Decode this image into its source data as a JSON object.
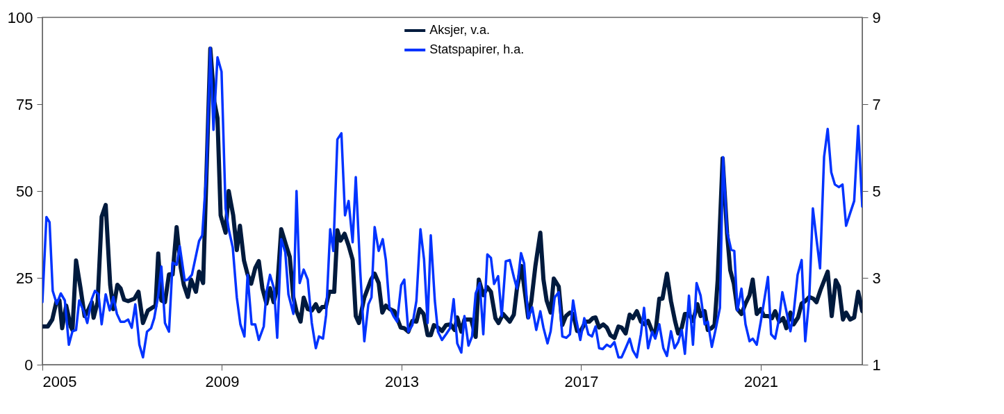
{
  "chart_data": {
    "type": "line",
    "xlim": [
      2005,
      2023.26
    ],
    "xticks": [
      2005,
      2009,
      2013,
      2017,
      2021
    ],
    "ylim": [
      0,
      100
    ],
    "yticks": [
      0,
      25,
      50,
      75,
      100
    ],
    "y2lim": [
      1,
      9
    ],
    "y2ticks": [
      1,
      3,
      5,
      7,
      9
    ],
    "grid": false,
    "legend": "top",
    "series": [
      {
        "name": "Aksjer, v.a.",
        "color": "#001a3d",
        "x": [
          2005.0,
          2005.12,
          2005.22,
          2005.31,
          2005.38,
          2005.44,
          2005.53,
          2005.63,
          2005.67,
          2005.75,
          2005.85,
          2005.94,
          2006.03,
          2006.1,
          2006.14,
          2006.23,
          2006.32,
          2006.41,
          2006.51,
          2006.58,
          2006.67,
          2006.74,
          2006.82,
          2006.91,
          2007.05,
          2007.14,
          2007.24,
          2007.35,
          2007.52,
          2007.58,
          2007.65,
          2007.73,
          2007.82,
          2007.9,
          2007.99,
          2008.08,
          2008.15,
          2008.24,
          2008.31,
          2008.42,
          2008.49,
          2008.58,
          2008.74,
          2008.83,
          2008.9,
          2008.97,
          2009.08,
          2009.15,
          2009.25,
          2009.33,
          2009.4,
          2009.49,
          2009.57,
          2009.65,
          2009.74,
          2009.82,
          2009.9,
          2009.99,
          2010.07,
          2010.15,
          2010.23,
          2010.32,
          2010.43,
          2010.51,
          2010.59,
          2010.66,
          2010.75,
          2010.82,
          2010.91,
          2011.0,
          2011.09,
          2011.16,
          2011.23,
          2011.31,
          2011.39,
          2011.5,
          2011.57,
          2011.64,
          2011.73,
          2011.82,
          2011.91,
          2011.98,
          2012.05,
          2012.17,
          2012.32,
          2012.4,
          2012.49,
          2012.57,
          2012.65,
          2012.74,
          2012.84,
          2012.98,
          2013.06,
          2013.15,
          2013.24,
          2013.33,
          2013.4,
          2013.49,
          2013.58,
          2013.65,
          2013.72,
          2013.81,
          2013.9,
          2013.99,
          2014.09,
          2014.18,
          2014.24,
          2014.33,
          2014.4,
          2014.55,
          2014.65,
          2014.72,
          2014.82,
          2014.91,
          2014.99,
          2015.09,
          2015.16,
          2015.26,
          2015.41,
          2015.5,
          2015.57,
          2015.67,
          2015.82,
          2015.89,
          2015.98,
          2016.09,
          2016.16,
          2016.23,
          2016.32,
          2016.39,
          2016.5,
          2016.58,
          2016.66,
          2016.75,
          2016.82,
          2016.91,
          2016.99,
          2017.1,
          2017.18,
          2017.26,
          2017.32,
          2017.4,
          2017.49,
          2017.57,
          2017.65,
          2017.74,
          2017.83,
          2017.9,
          2017.99,
          2018.08,
          2018.15,
          2018.24,
          2018.33,
          2018.42,
          2018.49,
          2018.58,
          2018.65,
          2018.74,
          2018.81,
          2018.91,
          2019.0,
          2019.09,
          2019.16,
          2019.24,
          2019.31,
          2019.4,
          2019.49,
          2019.59,
          2019.66,
          2019.75,
          2019.82,
          2019.9,
          2019.97,
          2020.04,
          2020.15,
          2020.25,
          2020.32,
          2020.4,
          2020.48,
          2020.57,
          2020.66,
          2020.75,
          2020.82,
          2020.91,
          2021.0,
          2021.07,
          2021.17,
          2021.25,
          2021.32,
          2021.41,
          2021.5,
          2021.57,
          2021.66,
          2021.73,
          2021.83,
          2021.91,
          2021.99,
          2022.08,
          2022.17,
          2022.24,
          2022.33,
          2022.49,
          2022.58,
          2022.67,
          2022.74,
          2022.83,
          2022.9,
          2022.99,
          2023.08,
          2023.17,
          2023.26
        ],
        "values": [
          11,
          11,
          13,
          18,
          18.5,
          10.5,
          17,
          11,
          10,
          30,
          22,
          14,
          16,
          18,
          13.5,
          18,
          42.6,
          46,
          23,
          16,
          23,
          22,
          18.7,
          18.3,
          19,
          21,
          12,
          15.6,
          17,
          32,
          18.5,
          18,
          26,
          26,
          39.6,
          28,
          23,
          19.5,
          24.5,
          21,
          26.8,
          23.5,
          91,
          75.7,
          71,
          43,
          38,
          50,
          43,
          33,
          40,
          30,
          26,
          23.3,
          27.8,
          29.8,
          22,
          17.6,
          22,
          18,
          22,
          39,
          34.3,
          31,
          19.3,
          15.4,
          12.4,
          19.3,
          16,
          15.6,
          17.4,
          15.4,
          16.6,
          16.6,
          21,
          21,
          38.7,
          35.7,
          37.7,
          34.3,
          30.2,
          14,
          12,
          19.3,
          24.5,
          26.2,
          23.5,
          15,
          17,
          16,
          15.4,
          10.7,
          10.5,
          9.5,
          12.6,
          12.4,
          16,
          14.6,
          8.5,
          8.5,
          11.4,
          10.7,
          9.7,
          11.4,
          11.6,
          10,
          13.6,
          9.5,
          13,
          13,
          8,
          24.5,
          20,
          22.3,
          21,
          13.4,
          12,
          14.6,
          12.4,
          14.4,
          22,
          28.4,
          13.6,
          18.3,
          28.4,
          38,
          24.5,
          18.5,
          15,
          24.8,
          22.5,
          11.4,
          14,
          15,
          14.6,
          9.7,
          9.7,
          12.4,
          12.4,
          13.4,
          13.6,
          10.7,
          11.6,
          10.7,
          8.5,
          7.7,
          11,
          10.7,
          9,
          14.4,
          13.4,
          15.4,
          12.4,
          11.6,
          12.6,
          9.7,
          8.7,
          19,
          19,
          26.2,
          18.3,
          12.6,
          9,
          10.7,
          14.6,
          14.6,
          12.6,
          17.4,
          14,
          15.4,
          10,
          10.5,
          11.4,
          24.3,
          59.4,
          37.7,
          27.2,
          23.3,
          16,
          14.6,
          17.6,
          20,
          24.5,
          14.6,
          16,
          14,
          14,
          13.4,
          15.4,
          12.4,
          13.4,
          10.5,
          15,
          11.6,
          13.6,
          17.6,
          18.3,
          19.5,
          19,
          18,
          21.5,
          26.8,
          14,
          24.3,
          22.5,
          13,
          15,
          13,
          13.6,
          21,
          15.4
        ]
      },
      {
        "name": "Statspapirer, h.a.",
        "color": "#0033ff",
        "axis": "y2",
        "x": [
          2005.0,
          2005.09,
          2005.16,
          2005.23,
          2005.32,
          2005.41,
          2005.5,
          2005.59,
          2005.67,
          2005.75,
          2005.82,
          2005.92,
          2006.0,
          2006.1,
          2006.17,
          2006.25,
          2006.32,
          2006.41,
          2006.5,
          2006.58,
          2006.66,
          2006.74,
          2006.83,
          2006.91,
          2006.99,
          2007.07,
          2007.16,
          2007.24,
          2007.33,
          2007.42,
          2007.49,
          2007.58,
          2007.65,
          2007.73,
          2007.82,
          2007.9,
          2007.99,
          2008.06,
          2008.17,
          2008.24,
          2008.33,
          2008.49,
          2008.56,
          2008.65,
          2008.74,
          2008.81,
          2008.9,
          2008.99,
          2009.08,
          2009.15,
          2009.24,
          2009.33,
          2009.41,
          2009.5,
          2009.57,
          2009.66,
          2009.74,
          2009.82,
          2009.93,
          2009.99,
          2010.07,
          2010.16,
          2010.23,
          2010.32,
          2010.41,
          2010.48,
          2010.59,
          2010.66,
          2010.73,
          2010.82,
          2010.91,
          2011.0,
          2011.09,
          2011.16,
          2011.25,
          2011.32,
          2011.41,
          2011.48,
          2011.57,
          2011.66,
          2011.74,
          2011.82,
          2011.91,
          2011.98,
          2012.08,
          2012.17,
          2012.26,
          2012.33,
          2012.4,
          2012.49,
          2012.58,
          2012.65,
          2012.73,
          2012.82,
          2012.9,
          2012.99,
          2013.06,
          2013.15,
          2013.24,
          2013.33,
          2013.42,
          2013.5,
          2013.58,
          2013.65,
          2013.74,
          2013.81,
          2013.9,
          2013.99,
          2014.08,
          2014.16,
          2014.24,
          2014.33,
          2014.4,
          2014.49,
          2014.57,
          2014.65,
          2014.74,
          2014.82,
          2014.91,
          2014.99,
          2015.06,
          2015.15,
          2015.23,
          2015.32,
          2015.41,
          2015.5,
          2015.57,
          2015.66,
          2015.73,
          2015.82,
          2015.91,
          2016.0,
          2016.09,
          2016.16,
          2016.25,
          2016.32,
          2016.41,
          2016.5,
          2016.58,
          2016.67,
          2016.75,
          2016.82,
          2016.89,
          2016.98,
          2017.07,
          2017.16,
          2017.24,
          2017.32,
          2017.4,
          2017.48,
          2017.57,
          2017.65,
          2017.74,
          2017.83,
          2017.9,
          2017.99,
          2018.08,
          2018.15,
          2018.24,
          2018.33,
          2018.4,
          2018.49,
          2018.58,
          2018.65,
          2018.74,
          2018.83,
          2018.91,
          2019.0,
          2019.08,
          2019.16,
          2019.24,
          2019.31,
          2019.4,
          2019.49,
          2019.57,
          2019.66,
          2019.75,
          2019.82,
          2019.91,
          2020.0,
          2020.09,
          2020.16,
          2020.25,
          2020.34,
          2020.41,
          2020.48,
          2020.57,
          2020.66,
          2020.75,
          2020.82,
          2020.91,
          2021.0,
          2021.07,
          2021.16,
          2021.23,
          2021.32,
          2021.41,
          2021.48,
          2021.57,
          2021.66,
          2021.73,
          2021.82,
          2021.91,
          2021.99,
          2022.08,
          2022.16,
          2022.24,
          2022.32,
          2022.41,
          2022.49,
          2022.57,
          2022.65,
          2022.74,
          2022.82,
          2022.9,
          2022.99,
          2023.08,
          2023.17,
          2023.26
        ],
        "values": [
          2.44,
          4.4,
          4.28,
          2.7,
          2.4,
          2.64,
          2.48,
          1.46,
          1.77,
          1.8,
          2.48,
          2.23,
          1.96,
          2.51,
          2.7,
          2.62,
          1.93,
          2.62,
          2.25,
          2.56,
          2.17,
          1.99,
          1.99,
          2.04,
          1.85,
          2.39,
          1.46,
          1.17,
          1.76,
          1.84,
          2.07,
          2.59,
          3.26,
          1.96,
          1.76,
          3.35,
          3.3,
          3.73,
          2.94,
          2.96,
          3.07,
          3.85,
          3.98,
          5.38,
          8.3,
          6.41,
          8.08,
          7.75,
          4.6,
          4.12,
          3.7,
          2.55,
          1.93,
          1.65,
          3.07,
          1.93,
          1.93,
          1.57,
          1.88,
          2.67,
          3.07,
          2.75,
          1.62,
          3.89,
          3.59,
          2.62,
          2.17,
          5.0,
          2.88,
          3.19,
          2.96,
          1.96,
          1.38,
          1.65,
          1.6,
          2.15,
          4.12,
          3.62,
          6.19,
          6.33,
          4.44,
          4.77,
          3.82,
          5.32,
          3.14,
          1.54,
          2.39,
          2.55,
          4.17,
          3.62,
          3.89,
          3.41,
          2.32,
          2.12,
          1.99,
          2.83,
          2.96,
          1.76,
          1.91,
          2.47,
          4.12,
          3.43,
          1.96,
          3.98,
          2.48,
          1.76,
          1.57,
          1.7,
          1.84,
          2.51,
          1.49,
          1.28,
          2.12,
          1.44,
          1.65,
          2.64,
          2.88,
          1.7,
          3.54,
          3.46,
          2.86,
          3.04,
          2.12,
          3.38,
          3.41,
          3.02,
          2.75,
          3.57,
          3.33,
          2.07,
          2.32,
          1.8,
          2.23,
          1.85,
          1.49,
          1.77,
          2.55,
          2.67,
          1.65,
          1.62,
          1.7,
          2.48,
          2.04,
          1.57,
          2.07,
          1.7,
          1.65,
          1.88,
          1.38,
          1.36,
          1.46,
          1.41,
          1.52,
          1.17,
          1.17,
          1.38,
          1.6,
          1.33,
          1.17,
          1.7,
          2.31,
          1.38,
          1.76,
          1.6,
          1.93,
          1.38,
          1.2,
          1.77,
          1.38,
          1.52,
          1.8,
          1.25,
          2.59,
          1.46,
          2.88,
          2.59,
          1.93,
          1.99,
          1.41,
          1.84,
          2.31,
          5.78,
          4.06,
          3.65,
          3.62,
          2.25,
          2.75,
          1.93,
          1.54,
          1.6,
          1.46,
          1.99,
          2.44,
          3.02,
          1.7,
          1.6,
          2.07,
          2.67,
          2.23,
          1.77,
          2.17,
          3.07,
          3.41,
          1.54,
          2.55,
          4.6,
          3.9,
          3.22,
          5.79,
          6.43,
          5.43,
          5.15,
          5.09,
          5.15,
          4.2,
          4.49,
          4.77,
          6.5,
          4.64
        ]
      }
    ]
  }
}
